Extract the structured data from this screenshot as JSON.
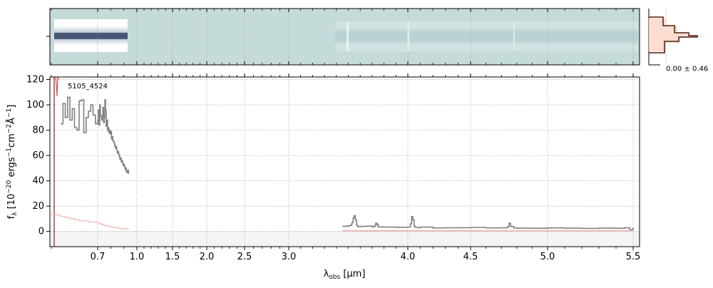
{
  "chart_data": {
    "type": "line",
    "title": "",
    "xlabel": "λobs [μm]",
    "ylabel": "fλ [10⁻²⁰ ergs⁻¹cm⁻²Å⁻¹]",
    "xlabel_parts": {
      "sym": "λ",
      "sub": "obs",
      "unit": " [μm]"
    },
    "ylabel_parts": {
      "sym": "f",
      "sub": "λ",
      "pre": " [10",
      "e1": "−20",
      "mid1": " ergs",
      "e2": "−1",
      "mid2": "cm",
      "e3": "−2",
      "mid3": "Å",
      "e4": "−1",
      "post": "]"
    },
    "x_scale": "nonlinear (stretched blue end)",
    "ylim": [
      -12,
      122
    ],
    "x_ticks": [
      {
        "v": 0.7,
        "label": "0.7"
      },
      {
        "v": 1.0,
        "label": "1.0"
      },
      {
        "v": 1.5,
        "label": "1.5"
      },
      {
        "v": 2.0,
        "label": "2.0"
      },
      {
        "v": 2.5,
        "label": "2.5"
      },
      {
        "v": 3.0,
        "label": "3.0"
      },
      {
        "v": 4.0,
        "label": "4.0"
      },
      {
        "v": 4.5,
        "label": "4.5"
      },
      {
        "v": 5.0,
        "label": "5.0"
      },
      {
        "v": 5.5,
        "label": "5.5"
      }
    ],
    "y_ticks": [
      0,
      20,
      40,
      60,
      80,
      100,
      120
    ],
    "grid": true,
    "annotation": "5105_4524",
    "series": [
      {
        "color": "#808080",
        "x": [
          0.62,
          0.625,
          0.63,
          0.635,
          0.64,
          0.645,
          0.65,
          0.655,
          0.66,
          0.665,
          0.67,
          0.675,
          0.68,
          0.685,
          0.69,
          0.695,
          0.7,
          0.705,
          0.71,
          0.715,
          0.72,
          0.725,
          0.73,
          0.735,
          0.74,
          0.745,
          0.75,
          0.755,
          0.76,
          0.765,
          0.77,
          0.775,
          0.78,
          0.785,
          0.79,
          0.795,
          0.8,
          0.805,
          0.81,
          0.815,
          0.82,
          0.825,
          0.83,
          0.835,
          0.84,
          0.845,
          0.85,
          0.855,
          0.86,
          0.865,
          0.87,
          0.875,
          0.88,
          0.885,
          0.89,
          0.895,
          0.9,
          0.905,
          0.91,
          0.915,
          0.92,
          0.925,
          0.93,
          0.935
        ],
        "y": [
          85,
          101,
          90,
          106,
          88,
          97,
          82,
          80,
          103,
          104,
          78,
          90,
          95,
          100,
          92,
          85,
          88,
          96,
          84,
          100,
          92,
          91,
          88,
          91,
          98,
          86,
          90,
          104,
          96,
          83,
          88,
          80,
          82,
          78,
          80,
          77,
          79,
          73,
          75,
          72,
          71,
          70,
          68,
          66,
          67,
          64,
          62,
          63,
          61,
          59,
          57,
          58,
          55,
          56,
          54,
          52,
          53,
          51,
          49,
          50,
          47,
          48,
          46,
          49
        ]
      },
      {
        "color": "#808080",
        "x": [
          3.45,
          3.48,
          3.5,
          3.52,
          3.53,
          3.54,
          3.55,
          3.56,
          3.57,
          3.58,
          3.6,
          3.65,
          3.7,
          3.72,
          3.73,
          3.74,
          3.75,
          3.8,
          3.85,
          3.9,
          3.95,
          4.0,
          4.02,
          4.03,
          4.04,
          4.05,
          4.06,
          4.08,
          4.1,
          4.2,
          4.3,
          4.4,
          4.5,
          4.6,
          4.7,
          4.74,
          4.75,
          4.76,
          4.78,
          4.8,
          4.9,
          5.0,
          5.1,
          5.2,
          5.3,
          5.4,
          5.45,
          5.48,
          5.5
        ],
        "y": [
          4.0,
          4.2,
          4.5,
          5.0,
          7.0,
          10.5,
          12.5,
          9.0,
          4.8,
          3.8,
          4.0,
          4.2,
          3.6,
          4.5,
          6.5,
          5.5,
          3.6,
          3.5,
          3.4,
          3.3,
          3.3,
          3.5,
          6.0,
          11.8,
          9.0,
          4.0,
          3.2,
          3.0,
          3.4,
          2.8,
          2.9,
          3.0,
          3.2,
          2.8,
          2.9,
          3.8,
          6.5,
          4.0,
          2.8,
          2.6,
          2.5,
          2.8,
          2.6,
          2.4,
          2.7,
          2.5,
          2.9,
          1.5,
          3.0
        ]
      },
      {
        "color": "#f4bcbc",
        "x": [
          0.6,
          0.61,
          0.62,
          0.63,
          0.64,
          0.65,
          0.66,
          0.68,
          0.7,
          0.72,
          0.74,
          0.76,
          0.78,
          0.8,
          0.82,
          0.84,
          0.86,
          0.88,
          0.9,
          0.935
        ],
        "y": [
          14,
          13,
          12,
          11,
          10,
          9.2,
          8.5,
          7.5,
          6.5,
          5.8,
          5.0,
          4.5,
          4.0,
          3.5,
          3.1,
          2.8,
          2.5,
          2.2,
          2.0,
          1.6
        ]
      },
      {
        "color": "#e8a7a7",
        "x": [
          3.45,
          3.7,
          4.0,
          4.3,
          4.6,
          4.9,
          5.2,
          5.5
        ],
        "y": [
          0.5,
          0.5,
          0.5,
          0.5,
          0.5,
          0.5,
          0.5,
          0.5
        ]
      }
    ],
    "side_panel": {
      "annotation": "0.00 ± 0.46"
    }
  }
}
